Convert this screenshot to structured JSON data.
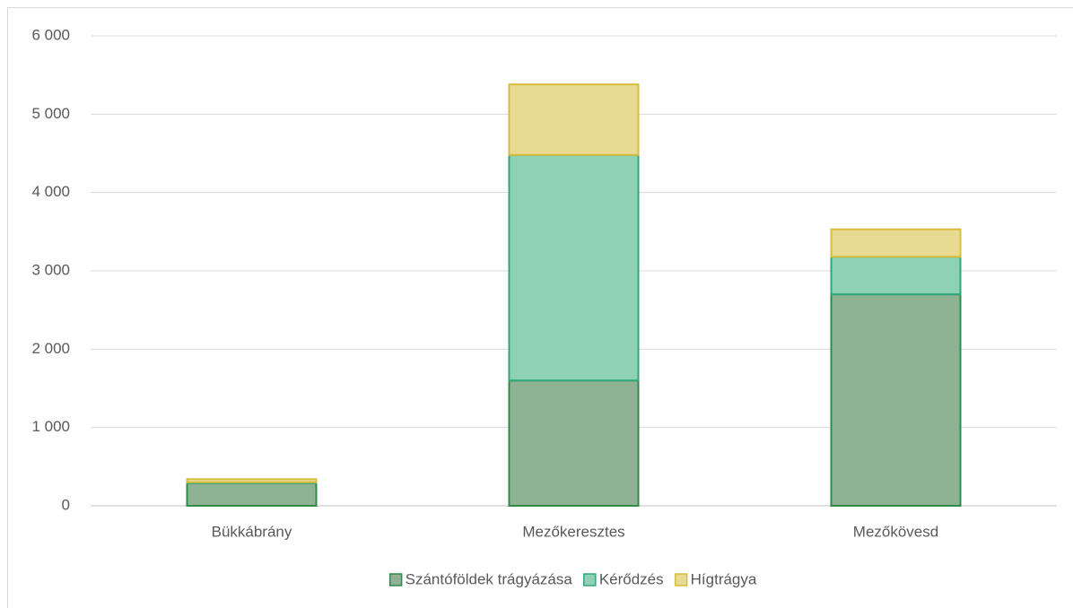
{
  "chart_data": {
    "type": "stacked_bar",
    "categories": [
      "Bükkábrány",
      "Mezőkeresztes",
      "Mezőkövesd"
    ],
    "series": [
      {
        "name": "Szántóföldek trágyázása",
        "color": "#8fb294",
        "edgecolor": "#2e8b4a",
        "values": [
          290,
          1600,
          2700
        ]
      },
      {
        "name": "Kérődzés",
        "color": "#8fd1b4",
        "edgecolor": "#2fa878",
        "values": [
          10,
          2880,
          480
        ]
      },
      {
        "name": "Hígtrágya",
        "color": "#e8da93",
        "edgecolor": "#d6bd3e",
        "values": [
          40,
          900,
          350
        ]
      }
    ],
    "ylim": [
      0,
      6000
    ],
    "yticks": [
      0,
      {
        "value": 1000,
        "label": "1 000"
      },
      {
        "value": 2000,
        "label": "2 000"
      },
      {
        "value": 3000,
        "label": "3 000"
      },
      {
        "value": 4000,
        "label": "4 000"
      },
      {
        "value": 5000,
        "label": "5 000"
      },
      {
        "value": 6000,
        "label": "6 000"
      }
    ],
    "grid": true,
    "legend": "bottom"
  }
}
